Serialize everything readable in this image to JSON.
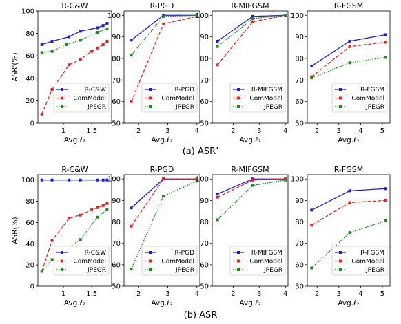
{
  "chart_data": [
    {
      "type": "line",
      "title": "R-C&W",
      "xlabel": "Avg.ℓ₂",
      "ylabel": "ASR'(%)",
      "xlim": [
        0.55,
        1.85
      ],
      "ylim": [
        0,
        100
      ],
      "xticks": [
        1,
        1.5
      ],
      "yticks": [
        0,
        20,
        40,
        60,
        80,
        100
      ],
      "legend_position": "lower-right",
      "series": [
        {
          "name": "R-C&W",
          "color": "#1f1fd0",
          "style": "solid",
          "x": [
            0.62,
            0.8,
            1.1,
            1.3,
            1.6,
            1.7,
            1.77
          ],
          "y": [
            70,
            73,
            77,
            82,
            85,
            87,
            89
          ]
        },
        {
          "name": "ComModel",
          "color": "#e8241f",
          "style": "dashed",
          "x": [
            0.62,
            0.8,
            1.1,
            1.3,
            1.5,
            1.6,
            1.7,
            1.77
          ],
          "y": [
            8,
            30,
            52,
            57,
            64,
            67,
            70,
            73
          ]
        },
        {
          "name": "JPEGR",
          "color": "#1a8c1a",
          "style": "dotted",
          "x": [
            0.62,
            0.8,
            1.05,
            1.3,
            1.6,
            1.77
          ],
          "y": [
            63,
            64,
            70,
            74,
            81,
            84
          ]
        }
      ]
    },
    {
      "type": "line",
      "title": "R-PGD",
      "xlabel": "",
      "ylabel": "",
      "xlim": [
        1.5,
        4.1
      ],
      "ylim": [
        50,
        102
      ],
      "xticks": [
        2,
        3,
        4
      ],
      "yticks": [
        50,
        60,
        70,
        80,
        90,
        100
      ],
      "legend_position": "lower-right",
      "series": [
        {
          "name": "R-PGD",
          "color": "#1f1fd0",
          "style": "solid",
          "x": [
            1.75,
            2.85,
            4.0
          ],
          "y": [
            88.5,
            100,
            100
          ]
        },
        {
          "name": "ComModel",
          "color": "#e8241f",
          "style": "dashed",
          "x": [
            1.75,
            2.85,
            4.0
          ],
          "y": [
            60,
            96,
            99.5
          ]
        },
        {
          "name": "JPEGR",
          "color": "#1a8c1a",
          "style": "dotted",
          "x": [
            1.75,
            2.85,
            4.0
          ],
          "y": [
            81.5,
            99.5,
            100
          ]
        }
      ]
    },
    {
      "type": "line",
      "title": "R-MIFGSM",
      "xlabel": "",
      "ylabel": "",
      "xlim": [
        1.2,
        4.1
      ],
      "ylim": [
        50,
        102
      ],
      "xticks": [
        2,
        3,
        4
      ],
      "yticks": [
        50,
        60,
        70,
        80,
        90,
        100
      ],
      "legend_position": "lower-right",
      "series": [
        {
          "name": "R-MIFGSM",
          "color": "#1f1fd0",
          "style": "solid",
          "x": [
            1.4,
            2.75,
            4.0
          ],
          "y": [
            88,
            99.5,
            100
          ]
        },
        {
          "name": "ComModel",
          "color": "#e8241f",
          "style": "dashed",
          "x": [
            1.4,
            2.75,
            4.0
          ],
          "y": [
            77,
            97,
            100
          ]
        },
        {
          "name": "JPEGR",
          "color": "#1a8c1a",
          "style": "dotted",
          "x": [
            1.4,
            2.75,
            4.0
          ],
          "y": [
            85.5,
            98.5,
            100
          ]
        }
      ]
    },
    {
      "type": "line",
      "title": "R-FGSM",
      "xlabel": "",
      "ylabel": "",
      "xlim": [
        1.55,
        5.35
      ],
      "ylim": [
        50,
        102
      ],
      "xticks": [
        2,
        3,
        4,
        5
      ],
      "yticks": [
        50,
        60,
        70,
        80,
        90,
        100
      ],
      "legend_position": "lower-right",
      "series": [
        {
          "name": "R-FGSM",
          "color": "#1f1fd0",
          "style": "solid",
          "x": [
            1.75,
            3.5,
            5.15
          ],
          "y": [
            76.5,
            88,
            91
          ]
        },
        {
          "name": "ComModel",
          "color": "#e8241f",
          "style": "dashed",
          "x": [
            1.75,
            3.5,
            5.15
          ],
          "y": [
            71.5,
            85.5,
            87.5
          ]
        },
        {
          "name": "JPEGR",
          "color": "#1a8c1a",
          "style": "dotted",
          "x": [
            1.75,
            3.5,
            5.15
          ],
          "y": [
            71,
            78,
            80.5
          ]
        }
      ]
    },
    {
      "type": "line",
      "title": "R-C&W",
      "xlabel": "Avg.ℓ₂",
      "ylabel": "ASR(%)",
      "xlim": [
        0.55,
        1.85
      ],
      "ylim": [
        0,
        105
      ],
      "xticks": [
        1,
        1.5
      ],
      "yticks": [
        0,
        20,
        40,
        60,
        80,
        100
      ],
      "legend_position": "lower-right",
      "series": [
        {
          "name": "R-C&W",
          "color": "#1f1fd0",
          "style": "solid",
          "x": [
            0.62,
            0.8,
            1.1,
            1.3,
            1.6,
            1.7,
            1.77
          ],
          "y": [
            100,
            100,
            100,
            100,
            100,
            100,
            100
          ]
        },
        {
          "name": "ComModel",
          "color": "#e8241f",
          "style": "dashed",
          "x": [
            0.62,
            0.8,
            1.1,
            1.3,
            1.5,
            1.6,
            1.7,
            1.77
          ],
          "y": [
            14,
            43,
            64,
            67,
            72,
            74,
            76,
            78
          ]
        },
        {
          "name": "JPEGR",
          "color": "#1a8c1a",
          "style": "dotted",
          "x": [
            0.62,
            0.8,
            1.05,
            1.3,
            1.6,
            1.77
          ],
          "y": [
            14,
            25,
            35,
            44,
            65,
            72
          ]
        }
      ]
    },
    {
      "type": "line",
      "title": "R-PGD",
      "xlabel": "",
      "ylabel": "",
      "xlim": [
        1.5,
        4.1
      ],
      "ylim": [
        50,
        102
      ],
      "xticks": [
        2,
        3,
        4
      ],
      "yticks": [
        50,
        60,
        70,
        80,
        90,
        100
      ],
      "legend_position": "lower-right",
      "series": [
        {
          "name": "R-PGD",
          "color": "#1f1fd0",
          "style": "solid",
          "x": [
            1.75,
            2.85,
            4.0
          ],
          "y": [
            86.5,
            100,
            100
          ]
        },
        {
          "name": "ComModel",
          "color": "#e8241f",
          "style": "dashed",
          "x": [
            1.75,
            2.85,
            4.0
          ],
          "y": [
            78,
            100,
            100
          ]
        },
        {
          "name": "JPEGR",
          "color": "#1a8c1a",
          "style": "dotted",
          "x": [
            1.75,
            2.85,
            4.0
          ],
          "y": [
            58,
            92,
            99
          ]
        }
      ]
    },
    {
      "type": "line",
      "title": "R-MIFGSM",
      "xlabel": "",
      "ylabel": "",
      "xlim": [
        1.2,
        4.1
      ],
      "ylim": [
        50,
        102
      ],
      "xticks": [
        2,
        3,
        4
      ],
      "yticks": [
        50,
        60,
        70,
        80,
        90,
        100
      ],
      "legend_position": "lower-right",
      "series": [
        {
          "name": "R-MIFGSM",
          "color": "#1f1fd0",
          "style": "solid",
          "x": [
            1.4,
            2.75,
            4.0
          ],
          "y": [
            93,
            100,
            100
          ]
        },
        {
          "name": "ComModel",
          "color": "#e8241f",
          "style": "dashed",
          "x": [
            1.4,
            2.75,
            4.0
          ],
          "y": [
            91.5,
            99.5,
            100
          ]
        },
        {
          "name": "JPEGR",
          "color": "#1a8c1a",
          "style": "dotted",
          "x": [
            1.4,
            2.75,
            4.0
          ],
          "y": [
            81,
            97,
            99.5
          ]
        }
      ]
    },
    {
      "type": "line",
      "title": "R-FGSM",
      "xlabel": "",
      "ylabel": "",
      "xlim": [
        1.55,
        5.35
      ],
      "ylim": [
        50,
        102
      ],
      "xticks": [
        2,
        3,
        4,
        5
      ],
      "yticks": [
        50,
        60,
        70,
        80,
        90,
        100
      ],
      "legend_position": "lower-right",
      "series": [
        {
          "name": "R-FGSM",
          "color": "#1f1fd0",
          "style": "solid",
          "x": [
            1.75,
            3.5,
            5.15
          ],
          "y": [
            85.5,
            94.5,
            95.5
          ]
        },
        {
          "name": "ComModel",
          "color": "#e8241f",
          "style": "dashed",
          "x": [
            1.75,
            3.5,
            5.15
          ],
          "y": [
            78.5,
            89,
            90
          ]
        },
        {
          "name": "JPEGR",
          "color": "#1a8c1a",
          "style": "dotted",
          "x": [
            1.75,
            3.5,
            5.15
          ],
          "y": [
            58.5,
            75,
            80.5
          ]
        }
      ]
    }
  ],
  "captions": [
    "(a) ASR’",
    "(b) ASR"
  ],
  "shared_xlabel": "Avg.ℓ₂"
}
